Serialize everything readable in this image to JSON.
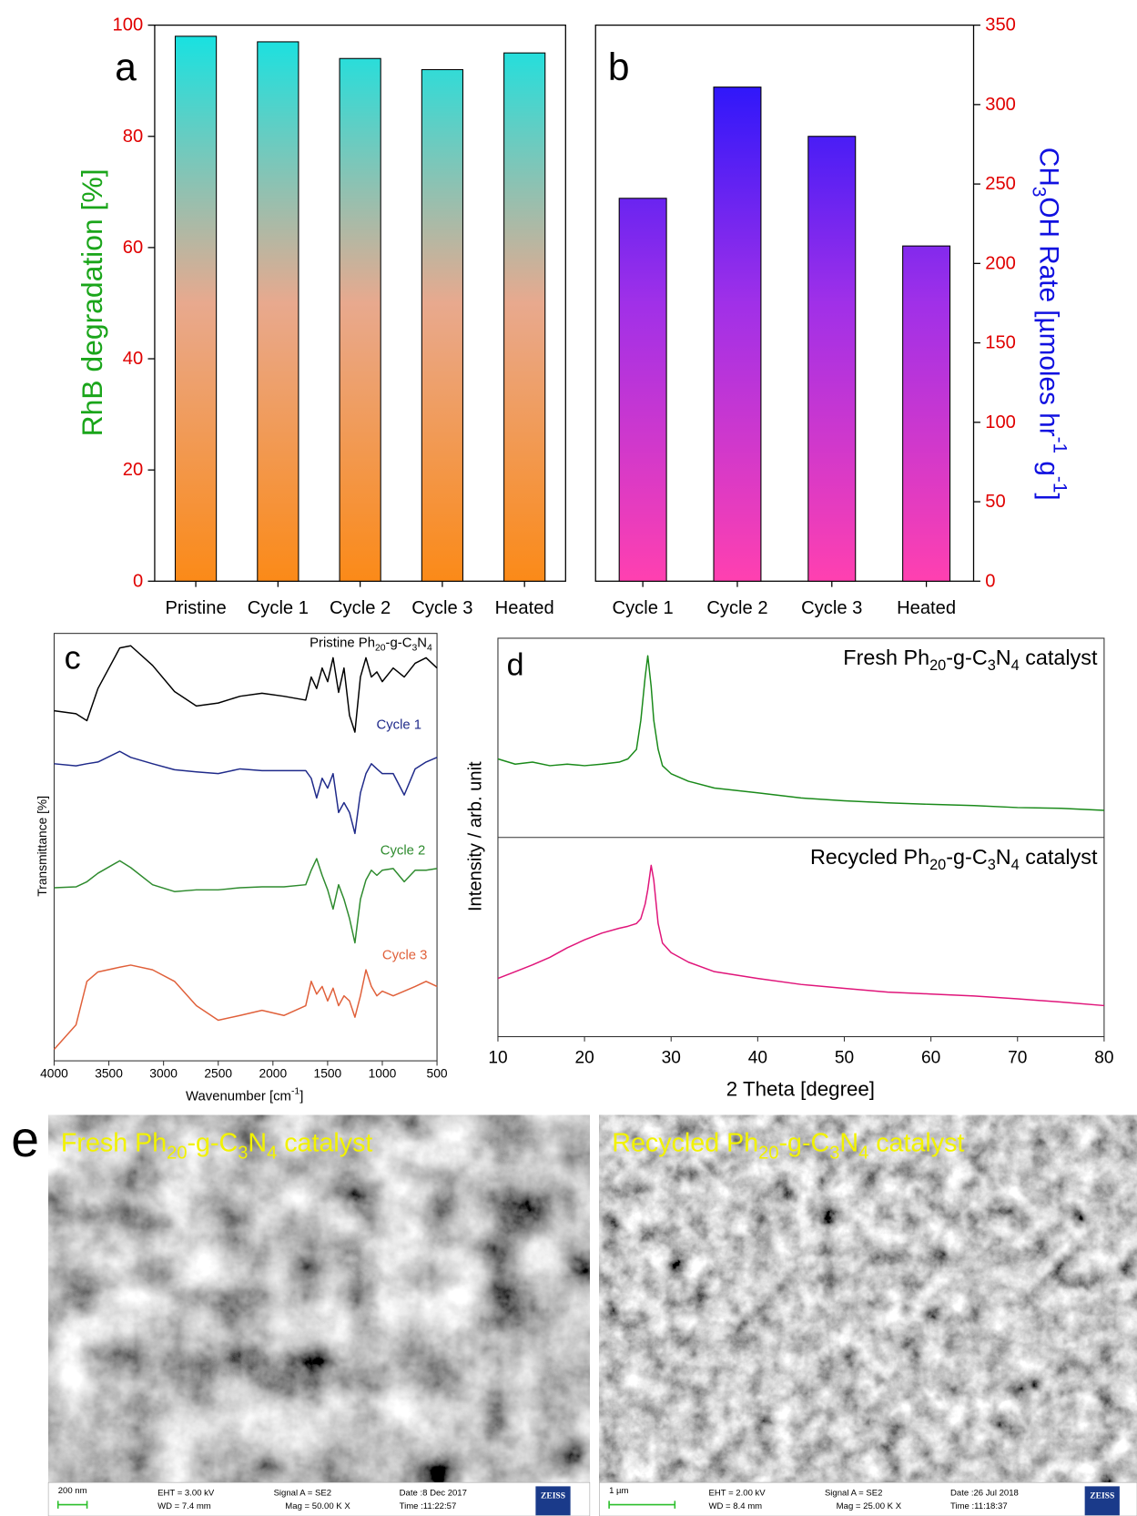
{
  "chart_data": [
    {
      "type": "bar",
      "label": "a",
      "categories": [
        "Pristine",
        "Cycle 1",
        "Cycle 2",
        "Cycle 3",
        "Heated"
      ],
      "values": [
        98,
        97,
        94,
        92,
        95
      ],
      "ylim": [
        0,
        100
      ],
      "yticks": [
        0,
        20,
        40,
        60,
        80,
        100
      ],
      "ylabel": "RhB degradation [%]",
      "ylabel_color": "#1aa51a",
      "tick_color": "#e00000",
      "gradient": [
        "#fb8a18",
        "#e8a98e",
        "#10e4e4"
      ]
    },
    {
      "type": "bar",
      "label": "b",
      "categories": [
        "Cycle 1",
        "Cycle 2",
        "Cycle 3",
        "Heated"
      ],
      "values": [
        241,
        311,
        280,
        211
      ],
      "y2lim": [
        0,
        350
      ],
      "y2ticks": [
        0,
        50,
        100,
        150,
        200,
        250,
        300,
        350
      ],
      "y2label": [
        {
          "text": "CH"
        },
        {
          "sub": "3"
        },
        {
          "text": "OH Rate [µmoles hr"
        },
        {
          "sup": "-1"
        },
        {
          "text": " g"
        },
        {
          "sup": "-1"
        },
        {
          "text": "]"
        }
      ],
      "ylabel_color": "#1010e0",
      "tick_color": "#e00000",
      "gradient": [
        "#ff40b0",
        "#a030e8",
        "#1010ff"
      ]
    },
    {
      "type": "line",
      "label": "c",
      "x": [
        4000,
        3800,
        3700,
        3600,
        3400,
        3300,
        3100,
        2900,
        2700,
        2500,
        2300,
        2100,
        1900,
        1700,
        1650,
        1600,
        1550,
        1500,
        1450,
        1400,
        1350,
        1300,
        1250,
        1200,
        1150,
        1100,
        1050,
        1000,
        900,
        800,
        700,
        600,
        500
      ],
      "xlim": [
        4000,
        500
      ],
      "xticks": [
        4000,
        3500,
        3000,
        2500,
        2000,
        1500,
        1000,
        500
      ],
      "ylim": [
        0,
        100
      ],
      "xlabel": [
        {
          "text": "Wavenumber [cm"
        },
        {
          "sup": "-1"
        },
        {
          "text": "]"
        }
      ],
      "ylabel": "Transmittance [%]",
      "series": [
        {
          "name": [
            {
              "text": "Pristine Ph"
            },
            {
              "sub": "20"
            },
            {
              "text": "-g-C"
            },
            {
              "sub": "3"
            },
            {
              "text": "N"
            },
            {
              "sub": "4"
            }
          ],
          "color": "#000000",
          "values": [
            81.9,
            81.2,
            79.6,
            87.1,
            96.6,
            97.1,
            92.5,
            86.4,
            83.0,
            83.7,
            85.3,
            86.0,
            85.3,
            84.4,
            89.8,
            87.1,
            91.9,
            88.7,
            94.3,
            86.2,
            91.9,
            80.8,
            76.9,
            89.8,
            94.3,
            89.8,
            91.0,
            88.7,
            91.9,
            89.8,
            93.0,
            94.3,
            91.9
          ]
        },
        {
          "name": "Cycle 1",
          "color": "#1f2a8a",
          "values": [
            69.5,
            69.0,
            69.5,
            69.9,
            72.4,
            71.0,
            69.5,
            68.1,
            67.6,
            67.2,
            68.3,
            67.9,
            67.9,
            67.9,
            66.1,
            61.5,
            66.1,
            63.8,
            67.2,
            58.1,
            60.4,
            58.1,
            53.2,
            62.7,
            67.2,
            69.5,
            68.3,
            67.2,
            67.2,
            62.2,
            68.3,
            69.9,
            71.0
          ]
        },
        {
          "name": "Cycle 2",
          "color": "#2e8b2e",
          "values": [
            40.5,
            40.7,
            41.9,
            43.9,
            46.8,
            45.2,
            41.2,
            39.6,
            40.0,
            40.0,
            40.5,
            40.7,
            40.7,
            41.2,
            44.6,
            47.3,
            43.4,
            40.0,
            35.5,
            41.2,
            37.8,
            33.3,
            27.6,
            37.8,
            42.3,
            44.6,
            43.4,
            44.6,
            45.0,
            41.9,
            44.6,
            44.6,
            45.0
          ]
        },
        {
          "name": "Cycle 3",
          "color": "#e0603a",
          "values": [
            2.7,
            8.4,
            18.6,
            20.8,
            21.9,
            22.4,
            21.3,
            18.6,
            12.9,
            9.5,
            10.6,
            11.8,
            10.6,
            12.9,
            18.6,
            15.6,
            17.4,
            14.0,
            17.0,
            12.9,
            15.2,
            14.0,
            10.2,
            15.2,
            21.3,
            17.4,
            15.2,
            16.3,
            15.2,
            16.3,
            17.4,
            18.6,
            17.4
          ]
        }
      ]
    },
    {
      "type": "line",
      "label": "d",
      "x": [
        10,
        12,
        14,
        16,
        18,
        20,
        22,
        24,
        25,
        26,
        26.5,
        27,
        27.3,
        27.7,
        28,
        28.5,
        29,
        30,
        32,
        35,
        40,
        45,
        50,
        55,
        60,
        65,
        70,
        75,
        80
      ],
      "xlim": [
        10,
        80
      ],
      "xticks": [
        10,
        20,
        30,
        40,
        50,
        60,
        70,
        80
      ],
      "ylim": [
        0,
        100
      ],
      "xlabel": "2 Theta [degree]",
      "ylabel": "Intensity / arb. unit",
      "series": [
        {
          "name": [
            {
              "text": "Fresh Ph"
            },
            {
              "sub": "20"
            },
            {
              "text": "-g-C"
            },
            {
              "sub": "3"
            },
            {
              "text": "N"
            },
            {
              "sub": "4"
            },
            {
              "text": " catalyst"
            }
          ],
          "color": "#1a8a1a",
          "values": [
            69.7,
            68.4,
            68.9,
            68.0,
            68.4,
            68.0,
            68.4,
            68.9,
            69.7,
            72.1,
            79.4,
            90.3,
            95.6,
            87.9,
            79.4,
            72.1,
            68.0,
            66.0,
            64.1,
            62.4,
            61.2,
            59.9,
            59.2,
            58.7,
            58.3,
            58.0,
            57.5,
            57.3,
            56.8
          ]
        },
        {
          "name": [
            {
              "text": "Recycled Ph"
            },
            {
              "sub": "20"
            },
            {
              "text": "-g-C"
            },
            {
              "sub": "3"
            },
            {
              "text": "N"
            },
            {
              "sub": "4"
            },
            {
              "text": " catalyst"
            }
          ],
          "color": "#e0157a",
          "values": [
            14.6,
            16.3,
            18.0,
            19.9,
            22.3,
            24.3,
            26.0,
            27.2,
            27.7,
            28.4,
            29.6,
            33.3,
            36.9,
            43.0,
            39.3,
            28.4,
            23.5,
            21.1,
            18.7,
            16.3,
            14.6,
            13.1,
            12.1,
            11.2,
            10.7,
            10.2,
            9.5,
            8.7,
            7.8
          ]
        }
      ]
    }
  ],
  "sem": {
    "label": "e",
    "panels": [
      {
        "title": [
          {
            "text": "Fresh Ph"
          },
          {
            "sub": "20"
          },
          {
            "text": "-g-C"
          },
          {
            "sub": "3"
          },
          {
            "text": "N"
          },
          {
            "sub": "4"
          },
          {
            "text": " catalyst"
          }
        ],
        "scale": "200 nm",
        "info": [
          "EHT = 3.00 kV",
          "WD = 7.4 mm",
          "Signal A = SE2",
          "Mag = 50.00 K X",
          "Date :8 Dec 2017",
          "Time :11:22:57"
        ],
        "brand": "ZEISS"
      },
      {
        "title": [
          {
            "text": "Recycled Ph"
          },
          {
            "sub": "20"
          },
          {
            "text": "-g-C"
          },
          {
            "sub": "3"
          },
          {
            "text": "N"
          },
          {
            "sub": "4"
          },
          {
            "text": " catalyst"
          }
        ],
        "scale": "1 µm",
        "info": [
          "EHT = 2.00 kV",
          "WD = 8.4 mm",
          "Signal A = SE2",
          "Mag = 25.00 K X",
          "Date :26 Jul 2018",
          "Time :11:18:37"
        ],
        "brand": "ZEISS"
      }
    ]
  }
}
